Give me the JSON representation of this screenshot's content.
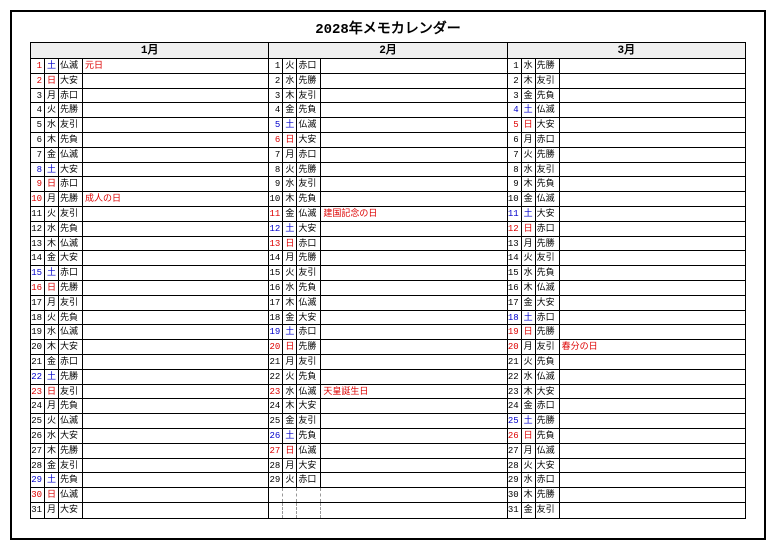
{
  "title": "2028年メモカレンダー",
  "colors": {
    "sunday": "#d00",
    "saturday": "#00c",
    "default": "#000",
    "holiday_note": "#d00"
  },
  "layout": {
    "rows_per_month": 31
  },
  "months": [
    {
      "label": "1月",
      "days": [
        {
          "n": 1,
          "dow": "土",
          "rok": "仏滅",
          "note": "元日",
          "dcol": "blue",
          "ncol": "red",
          "notecol": "red"
        },
        {
          "n": 2,
          "dow": "日",
          "rok": "大安",
          "dcol": "red",
          "ncol": "red"
        },
        {
          "n": 3,
          "dow": "月",
          "rok": "赤口"
        },
        {
          "n": 4,
          "dow": "火",
          "rok": "先勝"
        },
        {
          "n": 5,
          "dow": "水",
          "rok": "友引"
        },
        {
          "n": 6,
          "dow": "木",
          "rok": "先負"
        },
        {
          "n": 7,
          "dow": "金",
          "rok": "仏滅"
        },
        {
          "n": 8,
          "dow": "土",
          "rok": "大安",
          "dcol": "blue",
          "ncol": "blue"
        },
        {
          "n": 9,
          "dow": "日",
          "rok": "赤口",
          "dcol": "red",
          "ncol": "red"
        },
        {
          "n": 10,
          "dow": "月",
          "rok": "先勝",
          "note": "成人の日",
          "ncol": "red",
          "notecol": "red"
        },
        {
          "n": 11,
          "dow": "火",
          "rok": "友引"
        },
        {
          "n": 12,
          "dow": "水",
          "rok": "先負"
        },
        {
          "n": 13,
          "dow": "木",
          "rok": "仏滅"
        },
        {
          "n": 14,
          "dow": "金",
          "rok": "大安"
        },
        {
          "n": 15,
          "dow": "土",
          "rok": "赤口",
          "dcol": "blue",
          "ncol": "blue"
        },
        {
          "n": 16,
          "dow": "日",
          "rok": "先勝",
          "dcol": "red",
          "ncol": "red"
        },
        {
          "n": 17,
          "dow": "月",
          "rok": "友引"
        },
        {
          "n": 18,
          "dow": "火",
          "rok": "先負"
        },
        {
          "n": 19,
          "dow": "水",
          "rok": "仏滅"
        },
        {
          "n": 20,
          "dow": "木",
          "rok": "大安"
        },
        {
          "n": 21,
          "dow": "金",
          "rok": "赤口"
        },
        {
          "n": 22,
          "dow": "土",
          "rok": "先勝",
          "dcol": "blue",
          "ncol": "blue"
        },
        {
          "n": 23,
          "dow": "日",
          "rok": "友引",
          "dcol": "red",
          "ncol": "red"
        },
        {
          "n": 24,
          "dow": "月",
          "rok": "先負"
        },
        {
          "n": 25,
          "dow": "火",
          "rok": "仏滅"
        },
        {
          "n": 26,
          "dow": "水",
          "rok": "大安"
        },
        {
          "n": 27,
          "dow": "木",
          "rok": "先勝"
        },
        {
          "n": 28,
          "dow": "金",
          "rok": "友引"
        },
        {
          "n": 29,
          "dow": "土",
          "rok": "先負",
          "dcol": "blue",
          "ncol": "blue"
        },
        {
          "n": 30,
          "dow": "日",
          "rok": "仏滅",
          "dcol": "red",
          "ncol": "red"
        },
        {
          "n": 31,
          "dow": "月",
          "rok": "大安"
        }
      ]
    },
    {
      "label": "2月",
      "days": [
        {
          "n": 1,
          "dow": "火",
          "rok": "赤口"
        },
        {
          "n": 2,
          "dow": "水",
          "rok": "先勝"
        },
        {
          "n": 3,
          "dow": "木",
          "rok": "友引"
        },
        {
          "n": 4,
          "dow": "金",
          "rok": "先負"
        },
        {
          "n": 5,
          "dow": "土",
          "rok": "仏滅",
          "dcol": "blue",
          "ncol": "blue"
        },
        {
          "n": 6,
          "dow": "日",
          "rok": "大安",
          "dcol": "red",
          "ncol": "red"
        },
        {
          "n": 7,
          "dow": "月",
          "rok": "赤口"
        },
        {
          "n": 8,
          "dow": "火",
          "rok": "先勝"
        },
        {
          "n": 9,
          "dow": "水",
          "rok": "友引"
        },
        {
          "n": 10,
          "dow": "木",
          "rok": "先負"
        },
        {
          "n": 11,
          "dow": "金",
          "rok": "仏滅",
          "note": "建国記念の日",
          "ncol": "red",
          "notecol": "red"
        },
        {
          "n": 12,
          "dow": "土",
          "rok": "大安",
          "dcol": "blue",
          "ncol": "blue"
        },
        {
          "n": 13,
          "dow": "日",
          "rok": "赤口",
          "dcol": "red",
          "ncol": "red"
        },
        {
          "n": 14,
          "dow": "月",
          "rok": "先勝"
        },
        {
          "n": 15,
          "dow": "火",
          "rok": "友引"
        },
        {
          "n": 16,
          "dow": "水",
          "rok": "先負"
        },
        {
          "n": 17,
          "dow": "木",
          "rok": "仏滅"
        },
        {
          "n": 18,
          "dow": "金",
          "rok": "大安"
        },
        {
          "n": 19,
          "dow": "土",
          "rok": "赤口",
          "dcol": "blue",
          "ncol": "blue"
        },
        {
          "n": 20,
          "dow": "日",
          "rok": "先勝",
          "dcol": "red",
          "ncol": "red"
        },
        {
          "n": 21,
          "dow": "月",
          "rok": "友引"
        },
        {
          "n": 22,
          "dow": "火",
          "rok": "先負"
        },
        {
          "n": 23,
          "dow": "水",
          "rok": "仏滅",
          "note": "天皇誕生日",
          "ncol": "red",
          "notecol": "red"
        },
        {
          "n": 24,
          "dow": "木",
          "rok": "大安"
        },
        {
          "n": 25,
          "dow": "金",
          "rok": "友引"
        },
        {
          "n": 26,
          "dow": "土",
          "rok": "先負",
          "dcol": "blue",
          "ncol": "blue"
        },
        {
          "n": 27,
          "dow": "日",
          "rok": "仏滅",
          "dcol": "red",
          "ncol": "red"
        },
        {
          "n": 28,
          "dow": "月",
          "rok": "大安"
        },
        {
          "n": 29,
          "dow": "火",
          "rok": "赤口"
        }
      ]
    },
    {
      "label": "3月",
      "days": [
        {
          "n": 1,
          "dow": "水",
          "rok": "先勝"
        },
        {
          "n": 2,
          "dow": "木",
          "rok": "友引"
        },
        {
          "n": 3,
          "dow": "金",
          "rok": "先負"
        },
        {
          "n": 4,
          "dow": "土",
          "rok": "仏滅",
          "dcol": "blue",
          "ncol": "blue"
        },
        {
          "n": 5,
          "dow": "日",
          "rok": "大安",
          "dcol": "red",
          "ncol": "red"
        },
        {
          "n": 6,
          "dow": "月",
          "rok": "赤口"
        },
        {
          "n": 7,
          "dow": "火",
          "rok": "先勝"
        },
        {
          "n": 8,
          "dow": "水",
          "rok": "友引"
        },
        {
          "n": 9,
          "dow": "木",
          "rok": "先負"
        },
        {
          "n": 10,
          "dow": "金",
          "rok": "仏滅"
        },
        {
          "n": 11,
          "dow": "土",
          "rok": "大安",
          "dcol": "blue",
          "ncol": "blue"
        },
        {
          "n": 12,
          "dow": "日",
          "rok": "赤口",
          "dcol": "red",
          "ncol": "red"
        },
        {
          "n": 13,
          "dow": "月",
          "rok": "先勝"
        },
        {
          "n": 14,
          "dow": "火",
          "rok": "友引"
        },
        {
          "n": 15,
          "dow": "水",
          "rok": "先負"
        },
        {
          "n": 16,
          "dow": "木",
          "rok": "仏滅"
        },
        {
          "n": 17,
          "dow": "金",
          "rok": "大安"
        },
        {
          "n": 18,
          "dow": "土",
          "rok": "赤口",
          "dcol": "blue",
          "ncol": "blue"
        },
        {
          "n": 19,
          "dow": "日",
          "rok": "先勝",
          "dcol": "red",
          "ncol": "red"
        },
        {
          "n": 20,
          "dow": "月",
          "rok": "友引",
          "note": "春分の日",
          "ncol": "red",
          "notecol": "red"
        },
        {
          "n": 21,
          "dow": "火",
          "rok": "先負"
        },
        {
          "n": 22,
          "dow": "水",
          "rok": "仏滅"
        },
        {
          "n": 23,
          "dow": "木",
          "rok": "大安"
        },
        {
          "n": 24,
          "dow": "金",
          "rok": "赤口"
        },
        {
          "n": 25,
          "dow": "土",
          "rok": "先勝",
          "dcol": "blue",
          "ncol": "blue"
        },
        {
          "n": 26,
          "dow": "日",
          "rok": "先負",
          "dcol": "red",
          "ncol": "red"
        },
        {
          "n": 27,
          "dow": "月",
          "rok": "仏滅"
        },
        {
          "n": 28,
          "dow": "火",
          "rok": "大安"
        },
        {
          "n": 29,
          "dow": "水",
          "rok": "赤口"
        },
        {
          "n": 30,
          "dow": "木",
          "rok": "先勝"
        },
        {
          "n": 31,
          "dow": "金",
          "rok": "友引"
        }
      ]
    }
  ]
}
